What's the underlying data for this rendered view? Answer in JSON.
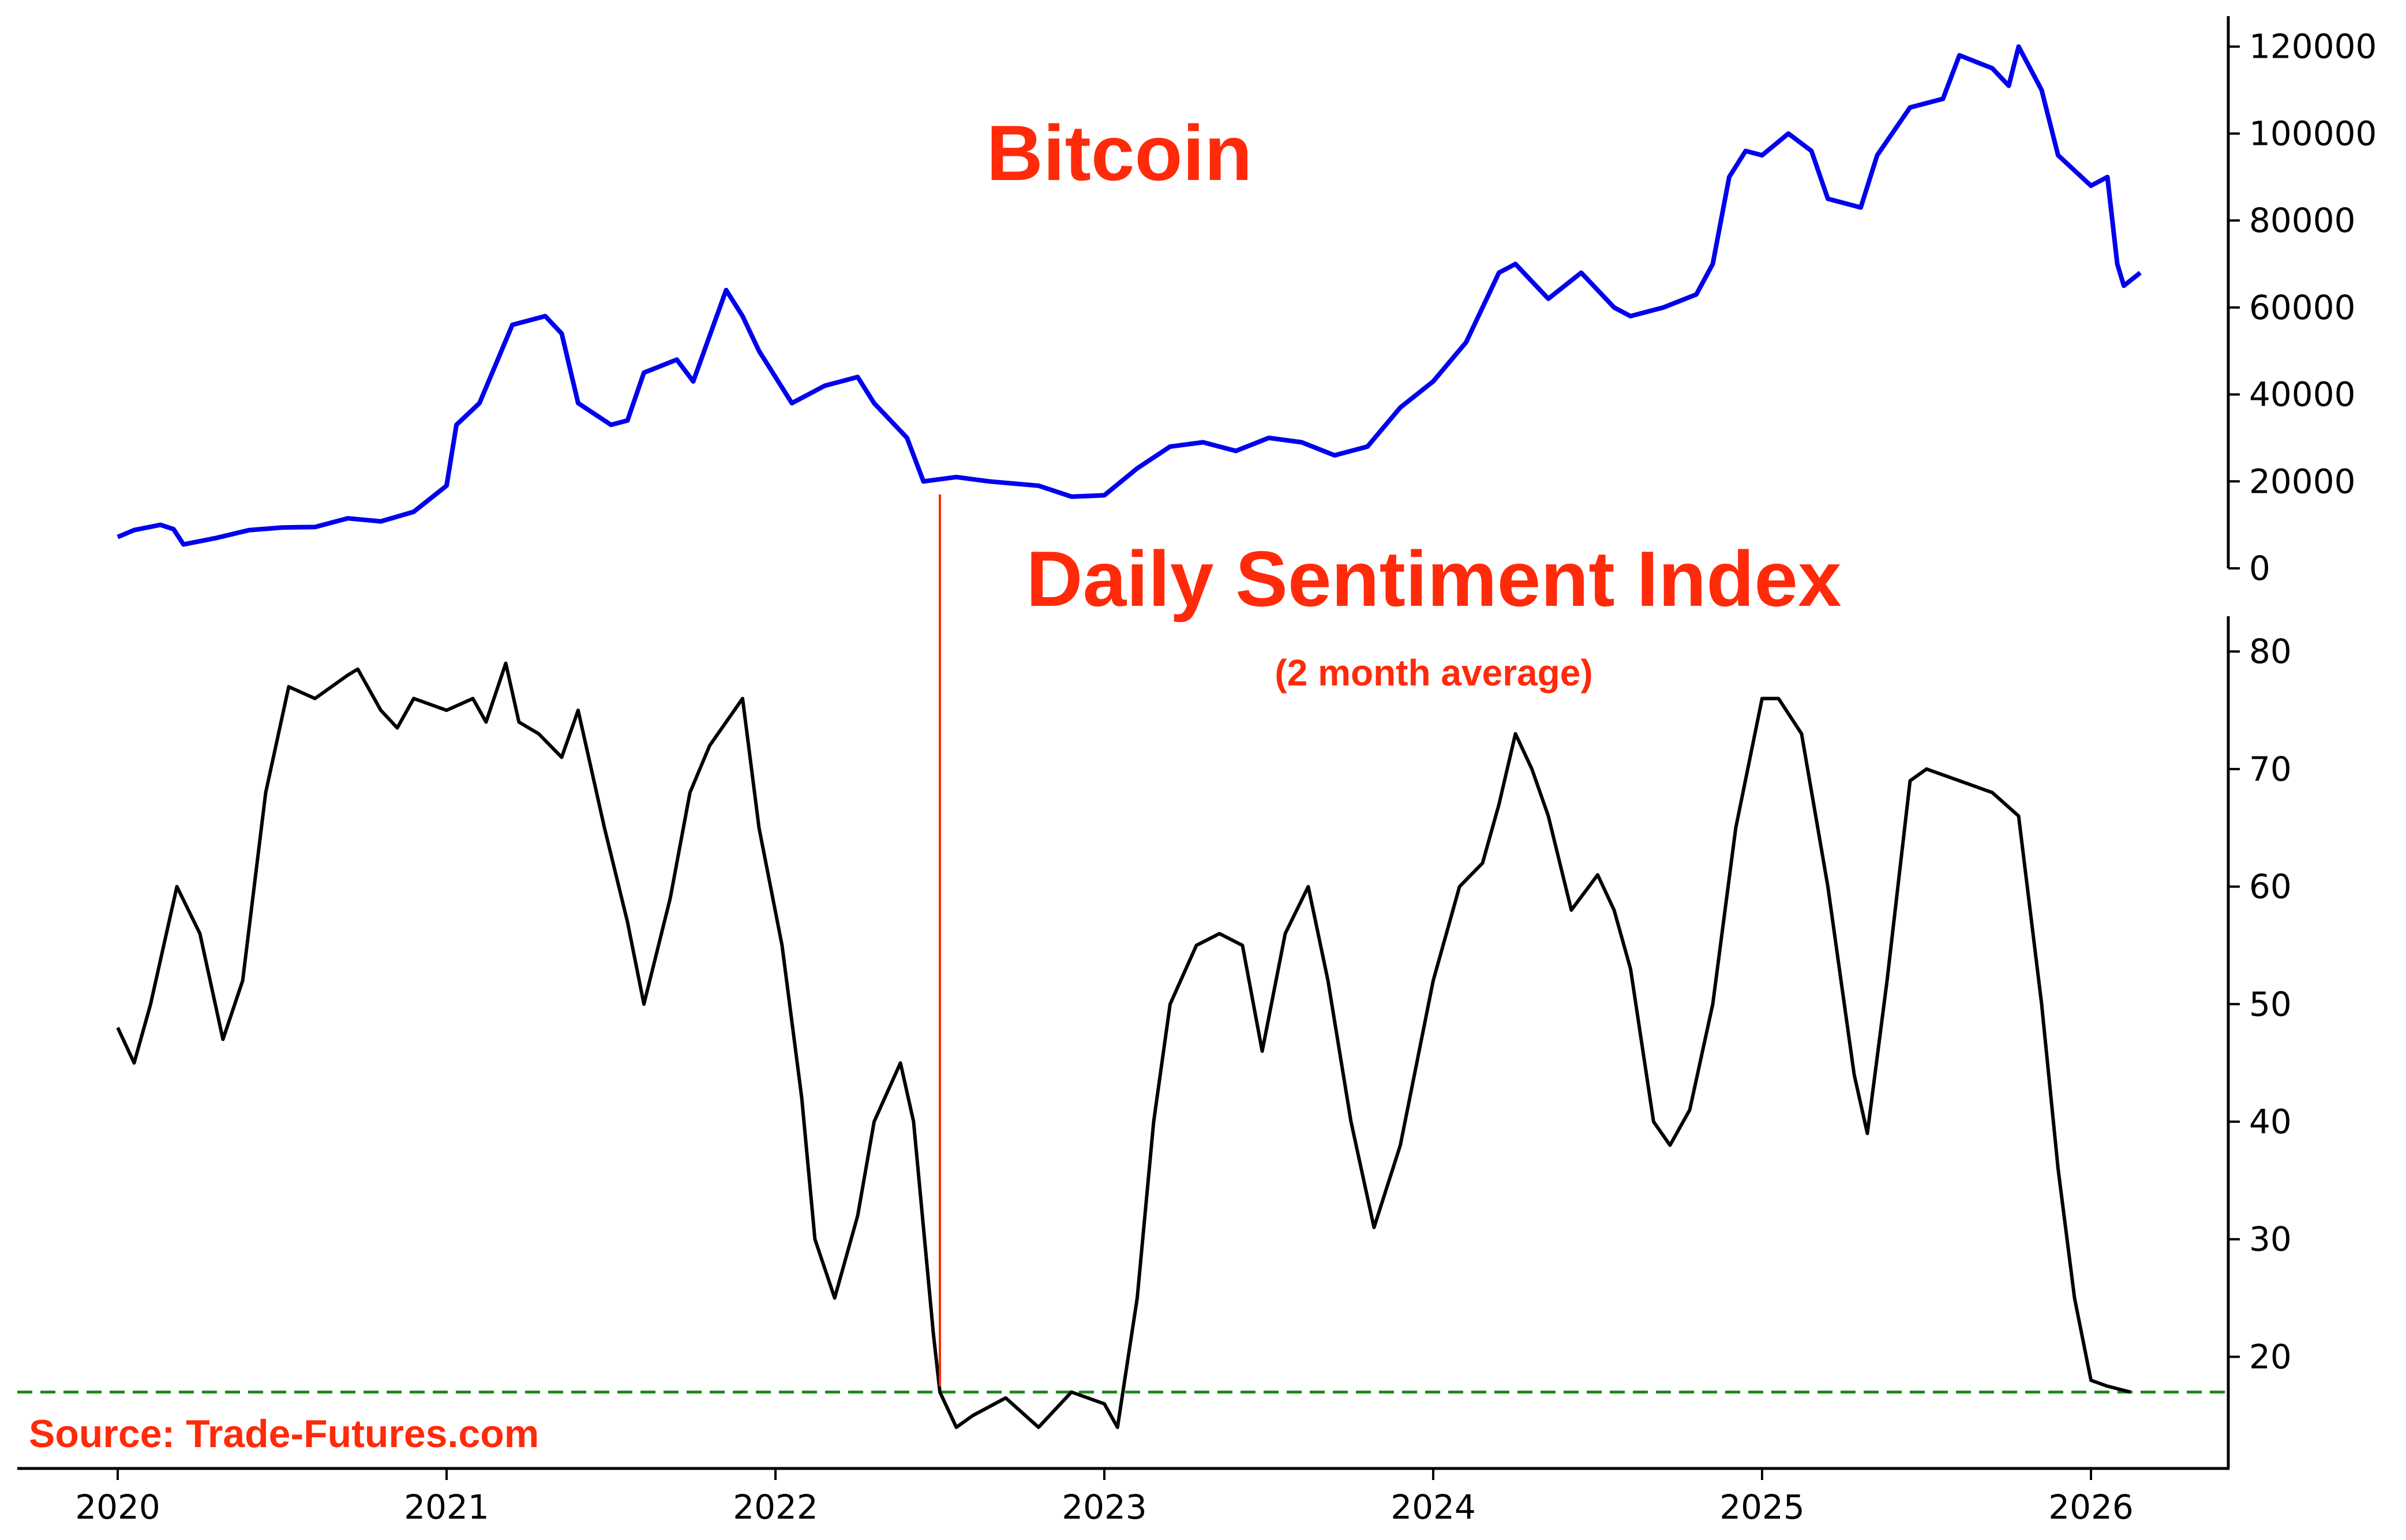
{
  "chart_data": [
    {
      "type": "line",
      "title": "Bitcoin",
      "series": [
        {
          "name": "",
          "color": "#0000ee",
          "points": [
            [
              2020.0,
              7200
            ],
            [
              2020.05,
              8800
            ],
            [
              2020.13,
              10000
            ],
            [
              2020.17,
              9000
            ],
            [
              2020.2,
              5500
            ],
            [
              2020.3,
              7000
            ],
            [
              2020.4,
              8800
            ],
            [
              2020.5,
              9400
            ],
            [
              2020.6,
              9500
            ],
            [
              2020.7,
              11500
            ],
            [
              2020.8,
              10800
            ],
            [
              2020.9,
              13000
            ],
            [
              2021.0,
              19000
            ],
            [
              2021.03,
              33000
            ],
            [
              2021.1,
              38000
            ],
            [
              2021.2,
              56000
            ],
            [
              2021.3,
              58000
            ],
            [
              2021.35,
              54000
            ],
            [
              2021.4,
              38000
            ],
            [
              2021.5,
              33000
            ],
            [
              2021.55,
              34000
            ],
            [
              2021.6,
              45000
            ],
            [
              2021.7,
              48000
            ],
            [
              2021.75,
              43000
            ],
            [
              2021.85,
              64000
            ],
            [
              2021.9,
              58000
            ],
            [
              2021.95,
              50000
            ],
            [
              2022.05,
              38000
            ],
            [
              2022.15,
              42000
            ],
            [
              2022.25,
              44000
            ],
            [
              2022.3,
              38000
            ],
            [
              2022.4,
              30000
            ],
            [
              2022.45,
              20000
            ],
            [
              2022.55,
              21000
            ],
            [
              2022.65,
              20000
            ],
            [
              2022.8,
              19000
            ],
            [
              2022.9,
              16500
            ],
            [
              2023.0,
              16800
            ],
            [
              2023.1,
              23000
            ],
            [
              2023.2,
              28000
            ],
            [
              2023.3,
              29000
            ],
            [
              2023.4,
              27000
            ],
            [
              2023.5,
              30000
            ],
            [
              2023.6,
              29000
            ],
            [
              2023.7,
              26000
            ],
            [
              2023.8,
              28000
            ],
            [
              2023.9,
              37000
            ],
            [
              2024.0,
              43000
            ],
            [
              2024.1,
              52000
            ],
            [
              2024.2,
              68000
            ],
            [
              2024.25,
              70000
            ],
            [
              2024.35,
              62000
            ],
            [
              2024.45,
              68000
            ],
            [
              2024.55,
              60000
            ],
            [
              2024.6,
              58000
            ],
            [
              2024.7,
              60000
            ],
            [
              2024.8,
              63000
            ],
            [
              2024.85,
              70000
            ],
            [
              2024.9,
              90000
            ],
            [
              2024.95,
              96000
            ],
            [
              2025.0,
              95000
            ],
            [
              2025.08,
              100000
            ],
            [
              2025.15,
              96000
            ],
            [
              2025.2,
              85000
            ],
            [
              2025.3,
              83000
            ],
            [
              2025.35,
              95000
            ],
            [
              2025.45,
              106000
            ],
            [
              2025.55,
              108000
            ],
            [
              2025.6,
              118000
            ],
            [
              2025.7,
              115000
            ],
            [
              2025.75,
              111000
            ],
            [
              2025.78,
              120000
            ],
            [
              2025.85,
              110000
            ],
            [
              2025.9,
              95000
            ],
            [
              2026.0,
              88000
            ],
            [
              2026.05,
              90000
            ],
            [
              2026.08,
              70000
            ],
            [
              2026.1,
              65000
            ],
            [
              2026.15,
              68000
            ]
          ]
        }
      ],
      "x_range": [
        2019.85,
        2026.55
      ],
      "y_range": [
        0,
        127000
      ],
      "y_ticks": [
        0,
        20000,
        40000,
        60000,
        80000,
        100000,
        120000
      ],
      "grid": false,
      "y_axis_side": "right"
    },
    {
      "type": "line",
      "title": "Daily Sentiment Index",
      "subtitle": "(2 month average)",
      "series": [
        {
          "name": "",
          "color": "#000000",
          "points": [
            [
              2020.0,
              48
            ],
            [
              2020.05,
              45
            ],
            [
              2020.1,
              50
            ],
            [
              2020.18,
              60
            ],
            [
              2020.25,
              56
            ],
            [
              2020.32,
              47
            ],
            [
              2020.38,
              52
            ],
            [
              2020.45,
              68
            ],
            [
              2020.52,
              77
            ],
            [
              2020.6,
              76
            ],
            [
              2020.7,
              78
            ],
            [
              2020.73,
              78.5
            ],
            [
              2020.8,
              75
            ],
            [
              2020.85,
              73.5
            ],
            [
              2020.9,
              76
            ],
            [
              2021.0,
              75
            ],
            [
              2021.08,
              76
            ],
            [
              2021.12,
              74
            ],
            [
              2021.18,
              79
            ],
            [
              2021.22,
              74
            ],
            [
              2021.28,
              73
            ],
            [
              2021.35,
              71
            ],
            [
              2021.4,
              75
            ],
            [
              2021.48,
              65
            ],
            [
              2021.55,
              57
            ],
            [
              2021.6,
              50
            ],
            [
              2021.68,
              59
            ],
            [
              2021.74,
              68
            ],
            [
              2021.8,
              72
            ],
            [
              2021.9,
              76
            ],
            [
              2021.95,
              65
            ],
            [
              2022.02,
              55
            ],
            [
              2022.08,
              42
            ],
            [
              2022.12,
              30
            ],
            [
              2022.18,
              25
            ],
            [
              2022.25,
              32
            ],
            [
              2022.3,
              40
            ],
            [
              2022.38,
              45
            ],
            [
              2022.42,
              40
            ],
            [
              2022.48,
              22
            ],
            [
              2022.5,
              17
            ],
            [
              2022.55,
              14
            ],
            [
              2022.6,
              15
            ],
            [
              2022.7,
              16.5
            ],
            [
              2022.8,
              14
            ],
            [
              2022.9,
              17
            ],
            [
              2023.0,
              16
            ],
            [
              2023.04,
              14
            ],
            [
              2023.1,
              25
            ],
            [
              2023.15,
              40
            ],
            [
              2023.2,
              50
            ],
            [
              2023.28,
              55
            ],
            [
              2023.35,
              56
            ],
            [
              2023.42,
              55
            ],
            [
              2023.48,
              46
            ],
            [
              2023.55,
              56
            ],
            [
              2023.62,
              60
            ],
            [
              2023.68,
              52
            ],
            [
              2023.75,
              40
            ],
            [
              2023.82,
              31
            ],
            [
              2023.9,
              38
            ],
            [
              2024.0,
              52
            ],
            [
              2024.08,
              60
            ],
            [
              2024.15,
              62
            ],
            [
              2024.2,
              67
            ],
            [
              2024.25,
              73
            ],
            [
              2024.3,
              70
            ],
            [
              2024.35,
              66
            ],
            [
              2024.42,
              58
            ],
            [
              2024.5,
              61
            ],
            [
              2024.55,
              58
            ],
            [
              2024.6,
              53
            ],
            [
              2024.67,
              40
            ],
            [
              2024.72,
              38
            ],
            [
              2024.78,
              41
            ],
            [
              2024.85,
              50
            ],
            [
              2024.92,
              65
            ],
            [
              2025.0,
              76
            ],
            [
              2025.05,
              76
            ],
            [
              2025.12,
              73
            ],
            [
              2025.2,
              60
            ],
            [
              2025.28,
              44
            ],
            [
              2025.32,
              39
            ],
            [
              2025.38,
              52
            ],
            [
              2025.45,
              69
            ],
            [
              2025.5,
              70
            ],
            [
              2025.6,
              69
            ],
            [
              2025.7,
              68
            ],
            [
              2025.78,
              66
            ],
            [
              2025.85,
              50
            ],
            [
              2025.9,
              36
            ],
            [
              2025.95,
              25
            ],
            [
              2026.0,
              18
            ],
            [
              2026.05,
              17.5
            ],
            [
              2026.12,
              17
            ]
          ]
        }
      ],
      "reference_line": {
        "y": 17,
        "style": "dashed",
        "color": "#1a8a1a"
      },
      "x_range": [
        2019.85,
        2026.55
      ],
      "y_range": [
        10.5,
        83
      ],
      "y_ticks": [
        20,
        30,
        40,
        50,
        60,
        70,
        80
      ],
      "x_ticks": [
        2020,
        2021,
        2022,
        2023,
        2024,
        2025,
        2026
      ],
      "grid": false,
      "y_axis_side": "right"
    }
  ],
  "marker_line": {
    "x": 2022.5,
    "color": "#ff2a0a"
  },
  "source_text": "Source: Trade-Futures.com"
}
